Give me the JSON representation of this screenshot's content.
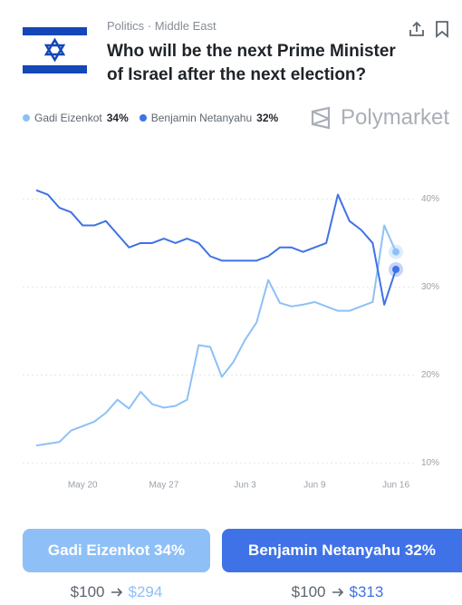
{
  "header": {
    "category": "Politics · Middle East",
    "title": "Who will be the next Prime Minister of Israel after the next election?"
  },
  "brand": "Polymarket",
  "chart_data": {
    "type": "line",
    "x": [
      "May 16",
      "May 17",
      "May 18",
      "May 19",
      "May 20",
      "May 21",
      "May 22",
      "May 23",
      "May 24",
      "May 25",
      "May 26",
      "May 27",
      "May 28",
      "May 29",
      "May 30",
      "May 31",
      "Jun 1",
      "Jun 2",
      "Jun 3",
      "Jun 4",
      "Jun 5",
      "Jun 6",
      "Jun 7",
      "Jun 8",
      "Jun 9",
      "Jun 10",
      "Jun 11",
      "Jun 12",
      "Jun 13",
      "Jun 14",
      "Jun 15",
      "Jun 16"
    ],
    "xticks": [
      "May 20",
      "May 27",
      "Jun 3",
      "Jun 9",
      "Jun 16"
    ],
    "series": [
      {
        "name": "Gadi Eizenkot",
        "current": "34%",
        "color": "#8ec0f7",
        "values": [
          12,
          12.2,
          12.4,
          13.7,
          14.2,
          14.7,
          15.7,
          17.2,
          16.2,
          18.1,
          16.7,
          16.3,
          16.5,
          17.2,
          23.4,
          23.2,
          19.8,
          21.5,
          24,
          26,
          30.8,
          28.2,
          27.8,
          28,
          28.3,
          27.8,
          27.3,
          27.3,
          27.8,
          28.3,
          37,
          34
        ]
      },
      {
        "name": "Benjamin Netanyahu",
        "current": "32%",
        "color": "#3f72e6",
        "values": [
          41,
          40.5,
          39,
          38.5,
          37,
          37,
          37.5,
          36,
          34.5,
          35,
          35,
          35.5,
          35,
          35.5,
          35,
          33.5,
          33,
          33,
          33,
          33,
          33.5,
          34.5,
          34.5,
          34,
          34.5,
          35,
          40.5,
          37.5,
          36.5,
          35,
          28,
          32
        ]
      }
    ],
    "ylim": [
      8,
      42
    ],
    "yticks": [
      {
        "value": 10,
        "label": "10%"
      },
      {
        "value": 20,
        "label": "20%"
      },
      {
        "value": 30,
        "label": "30%"
      },
      {
        "value": 40,
        "label": "40%"
      }
    ],
    "grid": true
  },
  "buttons": [
    {
      "label": "Gadi Eizenkot 34%",
      "stake": "$100",
      "payout": "$294"
    },
    {
      "label": "Benjamin Netanyahu 32%",
      "stake": "$100",
      "payout": "$313"
    }
  ]
}
